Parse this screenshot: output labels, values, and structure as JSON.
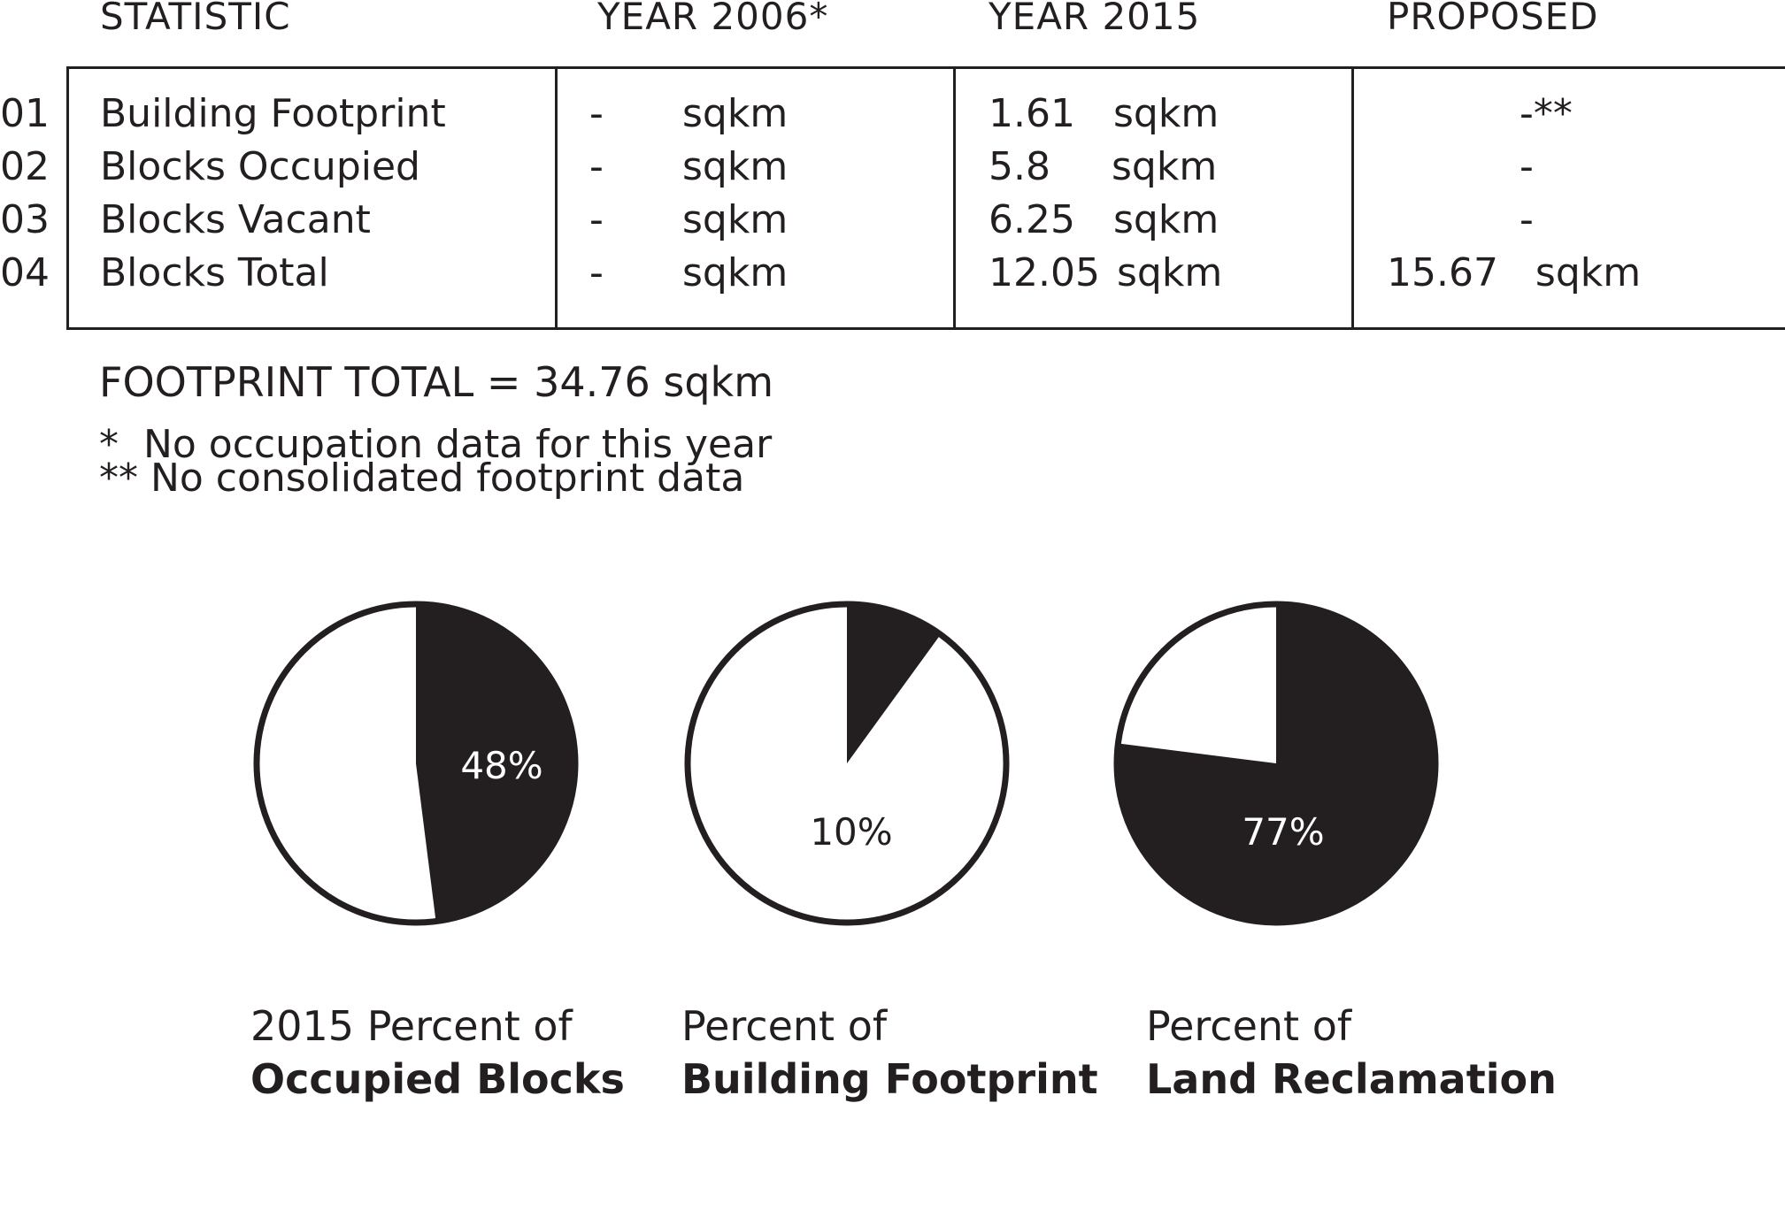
{
  "table": {
    "headers": [
      "STATISTIC",
      "YEAR 2006*",
      "YEAR 2015",
      "PROPOSED"
    ],
    "rows": [
      {
        "no": "01",
        "stat": "Building Footprint",
        "y2006_val": "-",
        "y2006_unit": "sqkm",
        "y2015_val": "1.61",
        "y2015_unit": "sqkm",
        "proposed": "-**"
      },
      {
        "no": "02",
        "stat": "Blocks Occupied",
        "y2006_val": "-",
        "y2006_unit": "sqkm",
        "y2015_val": "5.8",
        "y2015_unit": "sqkm",
        "proposed": "-"
      },
      {
        "no": "03",
        "stat": "Blocks Vacant",
        "y2006_val": "-",
        "y2006_unit": "sqkm",
        "y2015_val": "6.25",
        "y2015_unit": "sqkm",
        "proposed": "-"
      },
      {
        "no": "04",
        "stat": "Blocks Total",
        "y2006_val": "-",
        "y2006_unit": "sqkm",
        "y2015_val": "12.05",
        "y2015_unit": "sqkm",
        "proposed": "15.67   sqkm"
      }
    ]
  },
  "footprint_total": "FOOTPRINT TOTAL = 34.76 sqkm",
  "notes": [
    "*  No occupation data for this year",
    "** No consolidated footprint data"
  ],
  "colors": {
    "filled": "#231f20",
    "empty": "#ffffff",
    "label_on_dark": "#ffffff",
    "label_on_light": "#231f20"
  },
  "chart_data": [
    {
      "type": "pie",
      "values": [
        48,
        52
      ],
      "label": "48%",
      "caption_line1": "2015 Percent of",
      "caption_line2": "Occupied Blocks"
    },
    {
      "type": "pie",
      "values": [
        10,
        90
      ],
      "label": "10%",
      "caption_line1": "Percent of",
      "caption_line2": "Building Footprint"
    },
    {
      "type": "pie",
      "values": [
        77,
        23
      ],
      "label": "77%",
      "caption_line1": "Percent of",
      "caption_line2": "Land Reclamation"
    }
  ]
}
